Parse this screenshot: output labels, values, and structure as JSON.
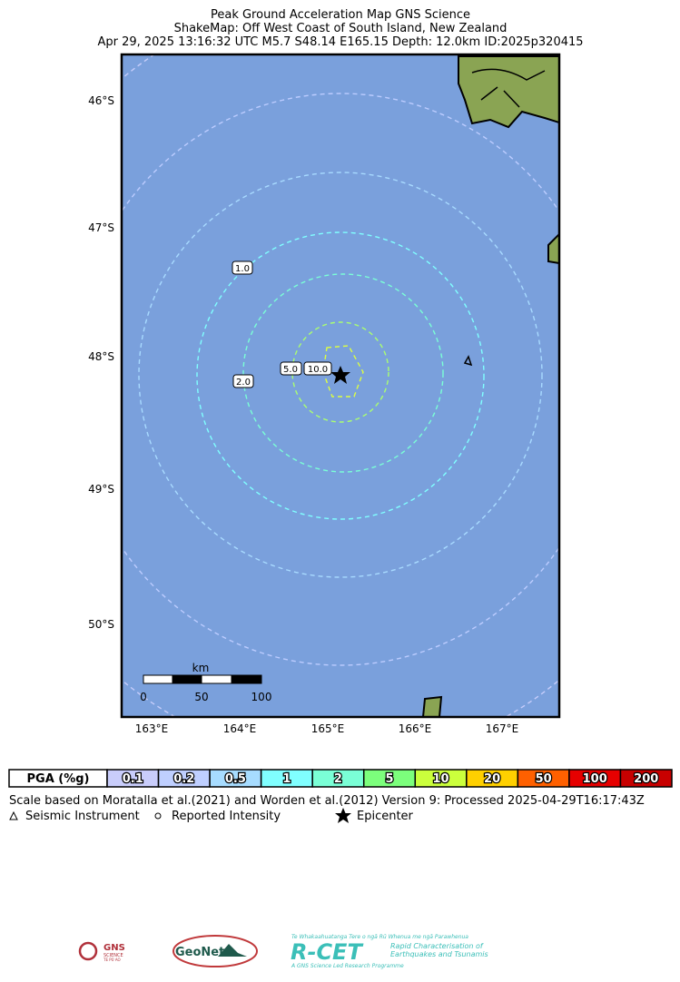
{
  "title": [
    "Peak Ground Acceleration Map GNS Science",
    "ShakeMap: Off West Coast of South Island, New Zealand",
    "Apr 29, 2025 13:16:32 UTC M5.7 S48.14 E165.15 Depth: 12.0km ID:2025p320415"
  ],
  "map": {
    "lat_labels": [
      "46°S",
      "47°S",
      "48°S",
      "49°S",
      "50°S"
    ],
    "lon_labels": [
      "163°E",
      "164°E",
      "165°E",
      "166°E",
      "167°E"
    ],
    "contour_labels": [
      "1.0",
      "2.0",
      "5.0",
      "10.0"
    ],
    "scale_bar": {
      "unit": "km",
      "labels": [
        "0",
        "50",
        "100"
      ]
    }
  },
  "legend": {
    "header": "PGA (%g)",
    "items": [
      {
        "label": "0.1",
        "color": "#c9cdfb"
      },
      {
        "label": "0.2",
        "color": "#bfcfff"
      },
      {
        "label": "0.5",
        "color": "#a7dcff"
      },
      {
        "label": "1",
        "color": "#80ffff"
      },
      {
        "label": "2",
        "color": "#7affd6"
      },
      {
        "label": "5",
        "color": "#7cff7c"
      },
      {
        "label": "10",
        "color": "#cbff3c"
      },
      {
        "label": "20",
        "color": "#ffd000"
      },
      {
        "label": "50",
        "color": "#ff6000"
      },
      {
        "label": "100",
        "color": "#e60000"
      },
      {
        "label": "200",
        "color": "#c80000"
      }
    ],
    "note": "Scale based on Moratalla et al.(2021) and Worden et al.(2012)   Version 9: Processed 2025-04-29T16:17:43Z",
    "symbols": [
      "Seismic Instrument",
      "Reported Intensity",
      "Epicenter"
    ]
  },
  "logos": {
    "gns": [
      "GNS",
      "SCIENCE",
      "TE PŪ AO"
    ],
    "geonet": "GeoNet",
    "rcet": [
      "Te Whakaahuatanga Tere o ngā Rū Whenua me ngā Parawhenua",
      "R-CET",
      "Rapid Characterisation of",
      "Earthquakes and Tsunamis",
      "A GNS Science Led Research Programme"
    ]
  }
}
